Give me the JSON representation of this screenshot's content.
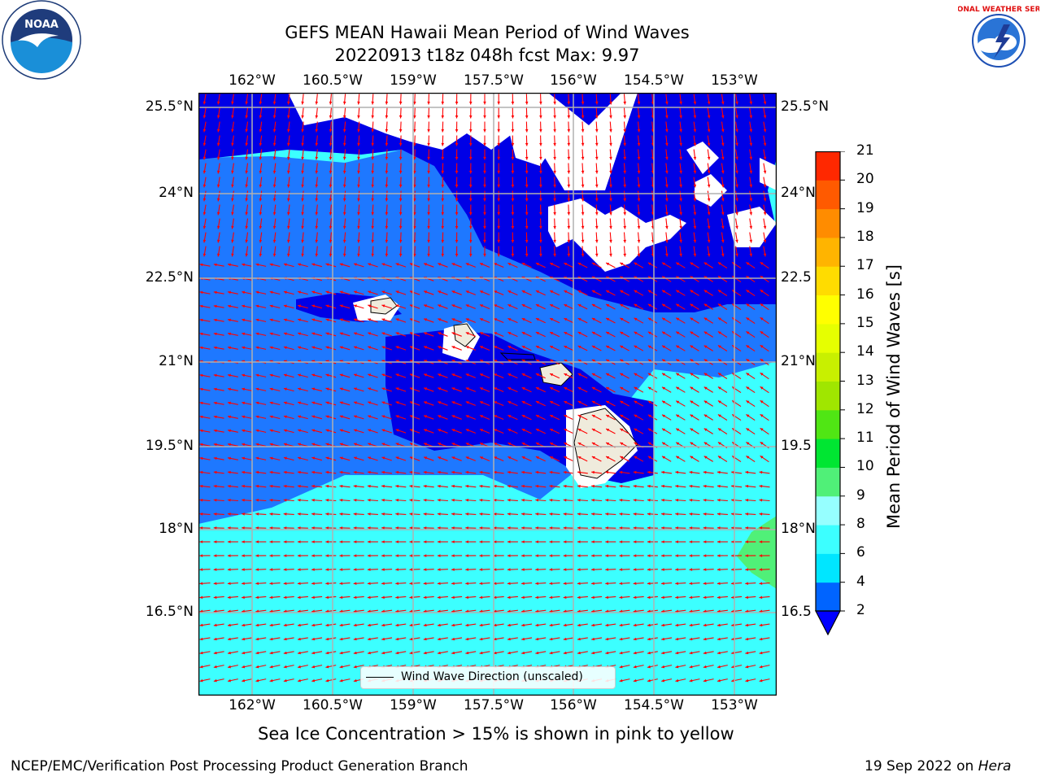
{
  "title": {
    "line1": "GEFS MEAN Hawaii Mean Period of Wind Waves",
    "line2": "20220913 t18z 048h fcst   Max: 9.97"
  },
  "map": {
    "lon_ticks": [
      "162°W",
      "160.5°W",
      "159°W",
      "157.5°W",
      "156°W",
      "154.5°W",
      "153°W"
    ],
    "lat_ticks_left": [
      "25.5°N",
      "24°N",
      "22.5°N",
      "21°N",
      "19.5°N",
      "18°N",
      "16.5°N"
    ],
    "lat_ticks_right": [
      "25.5°N",
      "24°N",
      "22.5",
      "21°N",
      "19.5",
      "18°N",
      "16.5"
    ],
    "legend_label": "Wind Wave Direction (unscaled)",
    "colors": {
      "land": "#efebdc",
      "deep_blue": "#0000e6",
      "mid_blue": "#1e78ff",
      "cyan": "#00ffff",
      "light_cyan": "#3cffff",
      "arrow": "#ff0000",
      "green": "#50f078"
    }
  },
  "colorbar": {
    "title": "Mean Period of Wind Waves [s]",
    "levels": [
      "2",
      "4",
      "6",
      "8",
      "9",
      "10",
      "11",
      "12",
      "13",
      "14",
      "15",
      "16",
      "17",
      "18",
      "19",
      "20",
      "21"
    ],
    "colors": [
      "#0064ff",
      "#00e6ff",
      "#3cffff",
      "#96ffff",
      "#50f078",
      "#00e632",
      "#50e614",
      "#a0e600",
      "#c8f000",
      "#e6ff00",
      "#ffff00",
      "#ffdc00",
      "#ffb400",
      "#ff8c00",
      "#ff5a00",
      "#ff2800"
    ],
    "under_color": "#0000ff"
  },
  "footer": {
    "note": "Sea Ice Concentration > 15% is shown in pink to yellow",
    "credit_left": "NCEP/EMC/Verification Post Processing Product Generation Branch",
    "credit_right_date": "19 Sep 2022 on ",
    "credit_right_host": "Hera"
  },
  "logos": {
    "noaa": "NOAA",
    "nws": "NATIONAL WEATHER SERVICE"
  }
}
